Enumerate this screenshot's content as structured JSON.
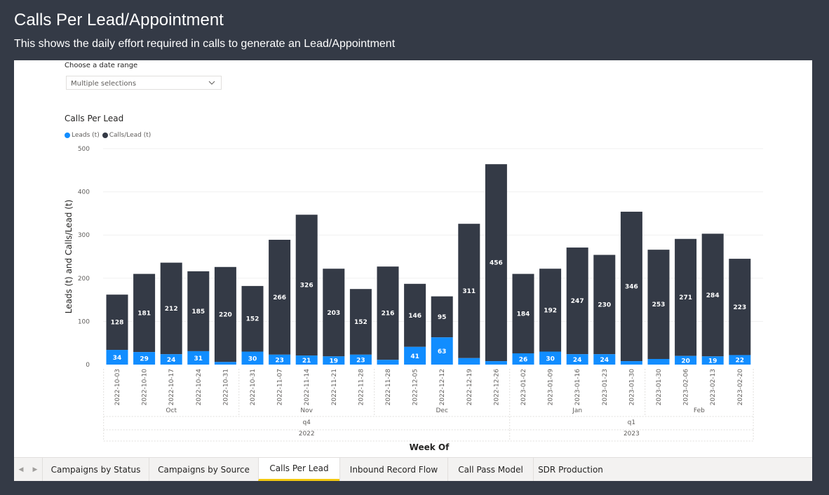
{
  "header": {
    "title": "Calls Per Lead/Appointment",
    "subtitle": "This shows the daily effort required in calls to generate an Lead/Appointment"
  },
  "slicer": {
    "label": "Choose a date range",
    "value": "Multiple selections"
  },
  "visual": {
    "title": "Calls Per Lead"
  },
  "colors": {
    "leads": "#118dff",
    "calls": "#343a46"
  },
  "chart_data": {
    "type": "bar",
    "stacked": true,
    "title": "Calls Per Lead",
    "xlabel": "Week Of",
    "ylabel": "Leads (t) and Calls/Lead (t)",
    "ylim": [
      0,
      500
    ],
    "yticks": [
      0,
      100,
      200,
      300,
      400,
      500
    ],
    "grid": true,
    "legend_position": "top-left",
    "categories": [
      "2022-10-03",
      "2022-10-10",
      "2022-10-17",
      "2022-10-24",
      "2022-10-31",
      "2022-10-31",
      "2022-11-07",
      "2022-11-14",
      "2022-11-21",
      "2022-11-28",
      "2022-11-28",
      "2022-12-05",
      "2022-12-12",
      "2022-12-19",
      "2022-12-26",
      "2023-01-02",
      "2023-01-09",
      "2023-01-16",
      "2023-01-23",
      "2023-01-30",
      "2023-01-30",
      "2023-02-06",
      "2023-02-13",
      "2023-02-20"
    ],
    "series": [
      {
        "name": "Leads (t)",
        "values": [
          34,
          29,
          24,
          31,
          6,
          30,
          23,
          21,
          19,
          23,
          11,
          41,
          63,
          15,
          8,
          26,
          30,
          24,
          24,
          8,
          13,
          20,
          19,
          22
        ],
        "labels": [
          "34",
          "29",
          "24",
          "31",
          "",
          "30",
          "23",
          "21",
          "19",
          "23",
          "",
          "41",
          "63",
          "",
          "",
          "26",
          "30",
          "24",
          "24",
          "",
          "",
          "20",
          "19",
          "22"
        ]
      },
      {
        "name": "Calls/Lead (t)",
        "values": [
          128,
          181,
          212,
          185,
          220,
          152,
          266,
          326,
          203,
          152,
          216,
          146,
          95,
          311,
          456,
          184,
          192,
          247,
          230,
          346,
          253,
          271,
          284,
          223
        ],
        "labels": [
          "128",
          "181",
          "212",
          "185",
          "220",
          "152",
          "266",
          "326",
          "203",
          "152",
          "216",
          "146",
          "95",
          "311",
          "456",
          "184",
          "192",
          "247",
          "230",
          "346",
          "253",
          "271",
          "284",
          "223"
        ]
      }
    ],
    "month_groups": [
      {
        "label": "Oct",
        "start": 0,
        "end": 4
      },
      {
        "label": "Nov",
        "start": 5,
        "end": 9
      },
      {
        "label": "Dec",
        "start": 10,
        "end": 14
      },
      {
        "label": "Jan",
        "start": 15,
        "end": 19
      },
      {
        "label": "Feb",
        "start": 20,
        "end": 23
      }
    ],
    "quarter_groups": [
      {
        "label": "q4",
        "start": 0,
        "end": 14
      },
      {
        "label": "q1",
        "start": 15,
        "end": 23
      }
    ],
    "year_groups": [
      {
        "label": "2022",
        "start": 0,
        "end": 14
      },
      {
        "label": "2023",
        "start": 15,
        "end": 23
      }
    ]
  },
  "tabs": [
    {
      "label": "Campaigns by Status",
      "active": false
    },
    {
      "label": "Campaigns by Source",
      "active": false
    },
    {
      "label": "Calls Per Lead",
      "active": true
    },
    {
      "label": "Inbound Record Flow",
      "active": false
    },
    {
      "label": "Call Pass Model",
      "active": false
    },
    {
      "label": "SDR Production",
      "active": false
    }
  ],
  "tab_nav": {
    "prev": "◀",
    "next": "▶"
  }
}
